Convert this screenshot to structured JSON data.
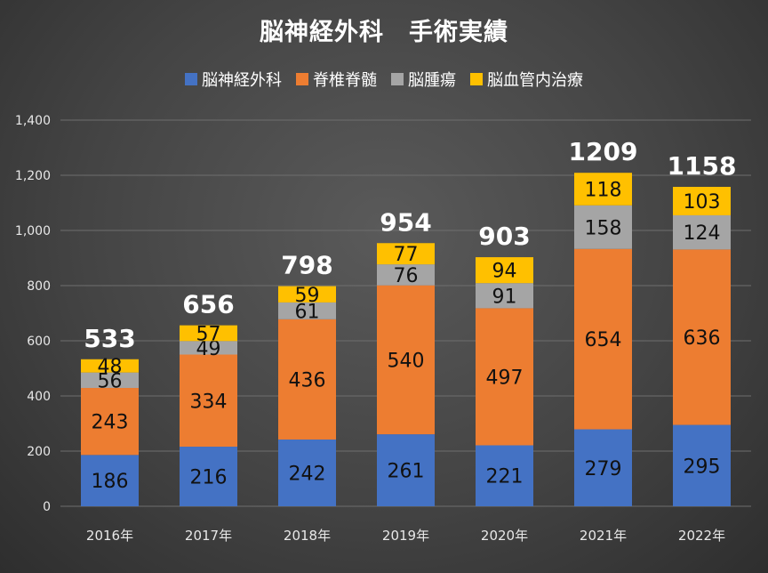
{
  "chart_data": {
    "type": "bar",
    "stacked": true,
    "title": "脳神経外科　手術実績",
    "categories": [
      "2016年",
      "2017年",
      "2018年",
      "2019年",
      "2020年",
      "2021年",
      "2022年"
    ],
    "series": [
      {
        "name": "脳神経外科",
        "color": "#4472c4",
        "values": [
          186,
          216,
          242,
          261,
          221,
          279,
          295
        ]
      },
      {
        "name": "脊椎脊髄",
        "color": "#ed7d31",
        "values": [
          243,
          334,
          436,
          540,
          497,
          654,
          636
        ]
      },
      {
        "name": "脳腫瘍",
        "color": "#a5a5a5",
        "values": [
          56,
          49,
          61,
          76,
          91,
          158,
          124
        ]
      },
      {
        "name": "脳血管内治療",
        "color": "#ffc000",
        "values": [
          48,
          57,
          59,
          77,
          94,
          118,
          103
        ]
      }
    ],
    "totals": [
      533,
      656,
      798,
      954,
      903,
      1209,
      1158
    ],
    "yticks": [
      "0",
      "200",
      "400",
      "600",
      "800",
      "1,000",
      "1,200",
      "1,400"
    ],
    "ylim": [
      0,
      1400
    ],
    "grid": true,
    "legend_position": "top"
  }
}
